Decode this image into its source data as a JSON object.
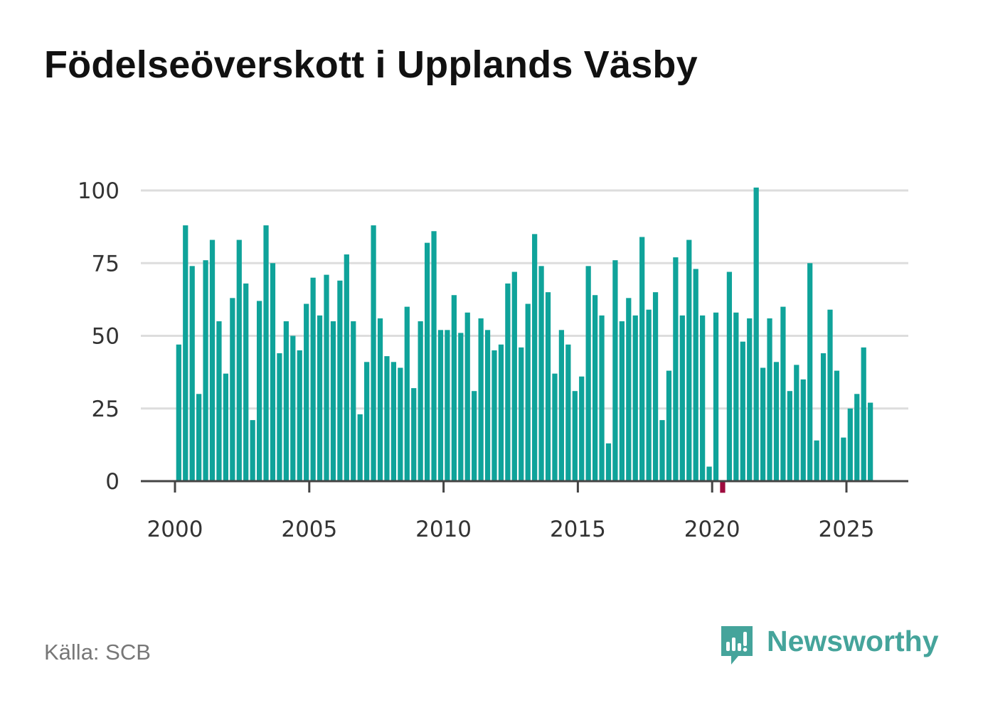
{
  "title": "Födelseöverskott i Upplands Väsby",
  "source": "Källa: SCB",
  "brand": {
    "name": "Newsworthy",
    "icon": "newsworthy-logo-icon"
  },
  "colors": {
    "positive": "#0fa39a",
    "negative": "#9e0b3e",
    "grid": "#dddddd",
    "axis": "#444444"
  },
  "chart_data": {
    "type": "bar",
    "title": "Födelseöverskott i Upplands Väsby",
    "xlabel": "",
    "ylabel": "",
    "frequency": "quarterly",
    "x_start": 2000.25,
    "x_step": 0.25,
    "ylim": [
      0,
      100
    ],
    "yticks": [
      0,
      25,
      50,
      75,
      100
    ],
    "xticks": [
      2000,
      2005,
      2010,
      2015,
      2020,
      2025
    ],
    "grid": true,
    "values": [
      47,
      88,
      74,
      30,
      76,
      83,
      55,
      37,
      63,
      83,
      68,
      21,
      62,
      88,
      75,
      44,
      55,
      50,
      45,
      61,
      70,
      57,
      71,
      55,
      69,
      78,
      55,
      23,
      41,
      88,
      56,
      43,
      41,
      39,
      60,
      32,
      55,
      82,
      86,
      52,
      52,
      64,
      51,
      58,
      31,
      56,
      52,
      45,
      47,
      68,
      72,
      46,
      61,
      85,
      74,
      65,
      37,
      52,
      47,
      31,
      36,
      74,
      64,
      57,
      13,
      76,
      55,
      63,
      57,
      84,
      59,
      65,
      21,
      38,
      77,
      57,
      83,
      73,
      57,
      5,
      58,
      -4,
      72,
      58,
      48,
      56,
      101,
      39,
      56,
      41,
      60,
      31,
      40,
      35,
      75,
      14,
      44,
      59,
      38,
      15,
      25,
      30,
      46,
      27
    ]
  }
}
